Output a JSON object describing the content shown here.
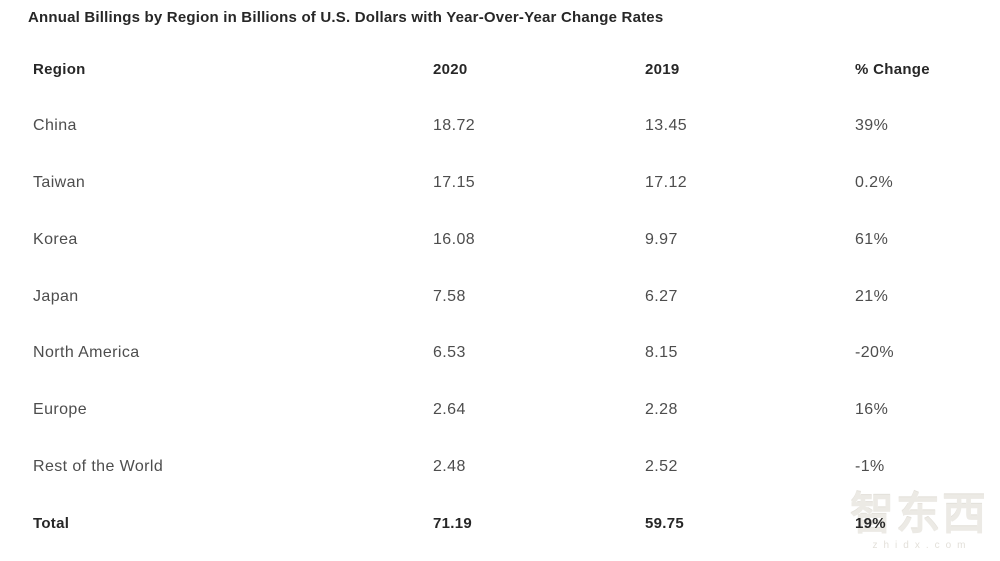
{
  "title": "Annual Billings by Region in Billions of U.S. Dollars with Year-Over-Year Change Rates",
  "table": {
    "columns": [
      "Region",
      "2020",
      "2019",
      "% Change"
    ],
    "rows": [
      {
        "region": "China",
        "y2020": "18.72",
        "y2019": "13.45",
        "change": "39%"
      },
      {
        "region": "Taiwan",
        "y2020": "17.15",
        "y2019": "17.12",
        "change": "0.2%"
      },
      {
        "region": "Korea",
        "y2020": "16.08",
        "y2019": "9.97",
        "change": "61%"
      },
      {
        "region": "Japan",
        "y2020": "7.58",
        "y2019": "6.27",
        "change": "21%"
      },
      {
        "region": "North America",
        "y2020": "6.53",
        "y2019": "8.15",
        "change": "-20%"
      },
      {
        "region": "Europe",
        "y2020": "2.64",
        "y2019": "2.28",
        "change": "16%"
      },
      {
        "region": "Rest of the World",
        "y2020": "2.48",
        "y2019": "2.52",
        "change": "-1%"
      }
    ],
    "total": {
      "region": "Total",
      "y2020": "71.19",
      "y2019": "59.75",
      "change": "19%"
    }
  },
  "watermark": {
    "logo": "智东西",
    "url": "zhidx.com"
  },
  "colors": {
    "heading_text": "#272727",
    "body_text": "#4d4d4d",
    "background": "#ffffff",
    "watermark": "#eceae5"
  },
  "chart_data": {
    "type": "table",
    "title": "Annual Billings by Region in Billions of U.S. Dollars with Year-Over-Year Change Rates",
    "categories": [
      "China",
      "Taiwan",
      "Korea",
      "Japan",
      "North America",
      "Europe",
      "Rest of the World",
      "Total"
    ],
    "series": [
      {
        "name": "2020",
        "values": [
          18.72,
          17.15,
          16.08,
          7.58,
          6.53,
          2.64,
          2.48,
          71.19
        ]
      },
      {
        "name": "2019",
        "values": [
          13.45,
          17.12,
          9.97,
          6.27,
          8.15,
          2.28,
          2.52,
          59.75
        ]
      },
      {
        "name": "% Change",
        "values": [
          "39%",
          "0.2%",
          "61%",
          "21%",
          "-20%",
          "16%",
          "-1%",
          "19%"
        ]
      }
    ]
  }
}
